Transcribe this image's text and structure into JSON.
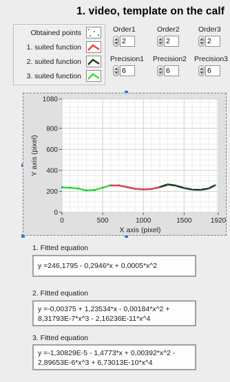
{
  "header": {
    "title": "1. video, template on the calf"
  },
  "legend": {
    "items": [
      {
        "label": "Obtained points",
        "color": "#1f6fe0",
        "style": "dots"
      },
      {
        "label": "1. suited function",
        "color": "#e8413c",
        "style": "line"
      },
      {
        "label": "2. suited function",
        "color": "#1c3a14",
        "style": "line"
      },
      {
        "label": "3. suited function",
        "color": "#39e02a",
        "style": "line"
      }
    ]
  },
  "parameters": [
    {
      "label": "Order1",
      "value": "2"
    },
    {
      "label": "Order2",
      "value": "2"
    },
    {
      "label": "Order3",
      "value": "2"
    },
    {
      "label": "Precision1",
      "value": "6"
    },
    {
      "label": "Precision2",
      "value": "6"
    },
    {
      "label": "Precision3",
      "value": "6"
    }
  ],
  "chart_data": {
    "type": "line",
    "xlabel": "X axis (pixel)",
    "ylabel": "Y axis (pixel)",
    "xlim": [
      0,
      1920
    ],
    "ylim": [
      0,
      1080
    ],
    "x_ticks": [
      "0",
      "500",
      "1000",
      "1500",
      "1920"
    ],
    "y_ticks": [
      "0",
      "200",
      "400",
      "600",
      "800",
      "1080"
    ],
    "grid": true,
    "series": [
      {
        "name": "Obtained points",
        "color": "#1f6fe0",
        "points": [
          [
            0,
            240
          ],
          [
            100,
            236
          ],
          [
            200,
            228
          ],
          [
            300,
            210
          ],
          [
            400,
            212
          ],
          [
            500,
            234
          ],
          [
            600,
            258
          ],
          [
            700,
            258
          ],
          [
            800,
            240
          ],
          [
            900,
            222
          ],
          [
            1000,
            216
          ],
          [
            1100,
            222
          ],
          [
            1200,
            242
          ],
          [
            1300,
            264
          ],
          [
            1400,
            252
          ],
          [
            1500,
            232
          ],
          [
            1600,
            216
          ],
          [
            1700,
            214
          ],
          [
            1800,
            226
          ],
          [
            1880,
            256
          ]
        ]
      },
      {
        "name": "1. suited function",
        "color": "#e8413c",
        "points": [
          [
            580,
            256
          ],
          [
            700,
            255
          ],
          [
            800,
            240
          ],
          [
            900,
            224
          ],
          [
            1000,
            218
          ],
          [
            1100,
            222
          ],
          [
            1200,
            240
          ],
          [
            1300,
            262
          ]
        ]
      },
      {
        "name": "2. suited function",
        "color": "#1c3a14",
        "points": [
          [
            1200,
            240
          ],
          [
            1300,
            266
          ],
          [
            1400,
            254
          ],
          [
            1500,
            232
          ],
          [
            1600,
            216
          ],
          [
            1700,
            214
          ],
          [
            1800,
            226
          ],
          [
            1880,
            258
          ]
        ]
      },
      {
        "name": "3. suited function",
        "color": "#39e02a",
        "points": [
          [
            0,
            236
          ],
          [
            100,
            234
          ],
          [
            200,
            226
          ],
          [
            300,
            208
          ],
          [
            400,
            212
          ],
          [
            500,
            234
          ],
          [
            590,
            256
          ]
        ]
      }
    ]
  },
  "equations": [
    {
      "title": "1. Fitted equation",
      "lines": [
        "y =246,1795 - 0,2946*x + 0,0005*x^2"
      ]
    },
    {
      "title": "2. Fitted equation",
      "lines": [
        "y =-0,00375 + 1,23534*x - 0,00184*x^2 +",
        "8,31793E-7*x^3 - 2,16236E-11*x^4"
      ]
    },
    {
      "title": "3. Fitted equation",
      "lines": [
        "y =-1,30829E-5 - 1,4773*x + 0,00392*x^2 -",
        "2,89653E-6*x^3 + 6,73013E-10*x^4"
      ]
    }
  ]
}
